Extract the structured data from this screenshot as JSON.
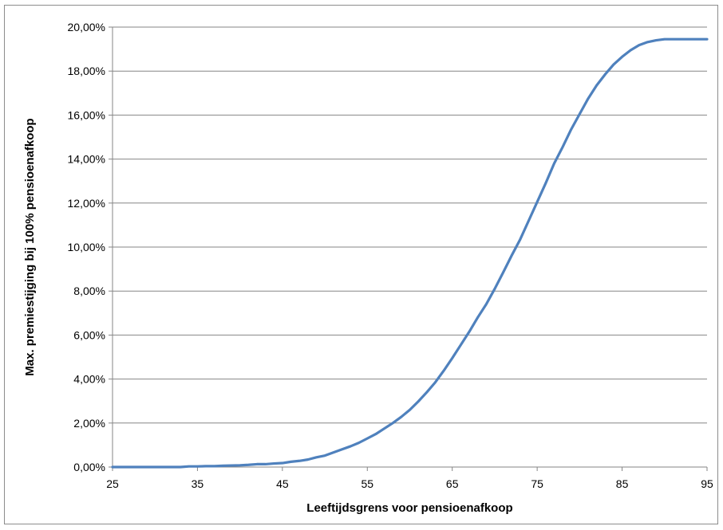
{
  "chart_data": {
    "type": "line",
    "title": "",
    "xlabel": "Leeftijdsgrens voor pensioenafkoop",
    "ylabel": "Max. premiestijging bij 100% pensioenafkoop",
    "xlim": [
      25,
      95
    ],
    "ylim": [
      0,
      0.2
    ],
    "x_ticks": [
      25,
      35,
      45,
      55,
      65,
      75,
      85,
      95
    ],
    "x_tick_labels": [
      "25",
      "35",
      "45",
      "55",
      "65",
      "75",
      "85",
      "95"
    ],
    "y_ticks": [
      0,
      0.02,
      0.04,
      0.06,
      0.08,
      0.1,
      0.12,
      0.14,
      0.16,
      0.18,
      0.2
    ],
    "y_tick_labels": [
      "0,00%",
      "2,00%",
      "4,00%",
      "6,00%",
      "8,00%",
      "10,00%",
      "12,00%",
      "14,00%",
      "16,00%",
      "18,00%",
      "20,00%"
    ],
    "grid": "horizontal",
    "legend": "none",
    "series": [
      {
        "color": "#4F81BD",
        "x": [
          25,
          26,
          27,
          28,
          29,
          30,
          31,
          32,
          33,
          34,
          35,
          36,
          37,
          38,
          39,
          40,
          41,
          42,
          43,
          44,
          45,
          46,
          47,
          48,
          49,
          50,
          51,
          52,
          53,
          54,
          55,
          56,
          57,
          58,
          59,
          60,
          61,
          62,
          63,
          64,
          65,
          66,
          67,
          68,
          69,
          70,
          71,
          72,
          73,
          74,
          75,
          76,
          77,
          78,
          79,
          80,
          81,
          82,
          83,
          84,
          85,
          86,
          87,
          88,
          89,
          90,
          91,
          92,
          93,
          94,
          95
        ],
        "values": [
          0.0,
          0.0,
          0.0,
          0.0,
          0.0,
          0.0,
          0.0,
          0.0,
          0.0,
          0.0003,
          0.0003,
          0.0004,
          0.0004,
          0.0006,
          0.0007,
          0.0008,
          0.001,
          0.0013,
          0.0013,
          0.0016,
          0.0018,
          0.0024,
          0.0028,
          0.0034,
          0.0044,
          0.0052,
          0.0066,
          0.008,
          0.0094,
          0.011,
          0.013,
          0.015,
          0.0175,
          0.02,
          0.0228,
          0.026,
          0.0298,
          0.034,
          0.0385,
          0.0438,
          0.0495,
          0.0555,
          0.0615,
          0.068,
          0.074,
          0.081,
          0.0885,
          0.0962,
          0.1035,
          0.112,
          0.1205,
          0.129,
          0.138,
          0.1455,
          0.1535,
          0.1605,
          0.1675,
          0.1735,
          0.1785,
          0.183,
          0.1865,
          0.1895,
          0.1918,
          0.1932,
          0.194,
          0.1945,
          0.1945,
          0.1945,
          0.1945,
          0.1945,
          0.1945
        ]
      }
    ]
  }
}
